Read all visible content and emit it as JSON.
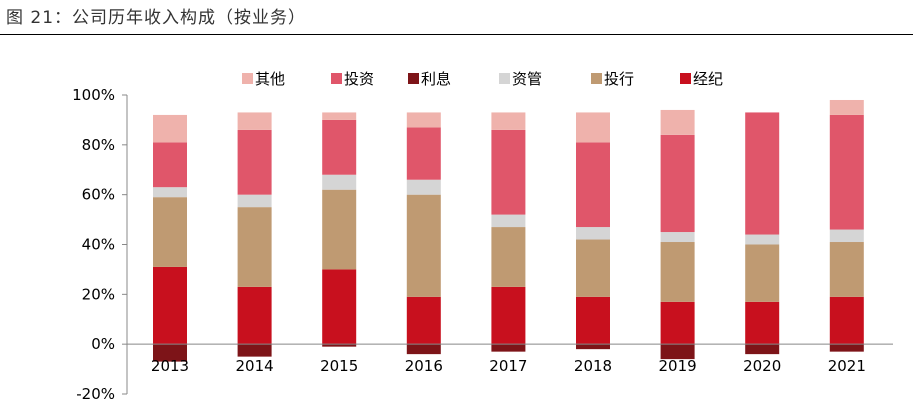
{
  "title": "图 21：公司历年收入构成（按业务）",
  "colors": {
    "其他": "#efb2ac",
    "投资": "#e0566a",
    "利息": "#7d1418",
    "资管": "#d5d5d5",
    "投行": "#bf9a72",
    "经纪": "#c8101e",
    "axis": "#888888",
    "title_rule": "#000000"
  },
  "chart_data": {
    "type": "bar",
    "stacked": true,
    "categories": [
      "2013",
      "2014",
      "2015",
      "2016",
      "2017",
      "2018",
      "2019",
      "2020",
      "2021"
    ],
    "series": [
      {
        "name": "其他",
        "values": [
          11,
          7,
          3,
          6,
          7,
          12,
          10,
          0,
          6
        ]
      },
      {
        "name": "投资",
        "values": [
          18,
          26,
          22,
          21,
          34,
          34,
          39,
          49,
          46
        ]
      },
      {
        "name": "利息",
        "values": [
          -7,
          -5,
          -1,
          -4,
          -3,
          -2,
          -6,
          -4,
          -3
        ]
      },
      {
        "name": "资管",
        "values": [
          4,
          5,
          6,
          6,
          5,
          5,
          4,
          4,
          5
        ]
      },
      {
        "name": "投行",
        "values": [
          28,
          32,
          32,
          41,
          24,
          23,
          24,
          23,
          22
        ]
      },
      {
        "name": "经纪",
        "values": [
          31,
          23,
          30,
          19,
          23,
          19,
          17,
          17,
          19
        ]
      }
    ],
    "ylim": [
      -20,
      100
    ],
    "yticks": [
      "-20%",
      "0%",
      "20%",
      "40%",
      "60%",
      "80%",
      "100%"
    ],
    "ytick_values": [
      -20,
      0,
      20,
      40,
      60,
      80,
      100
    ],
    "legend_position": "top",
    "grid": false
  }
}
